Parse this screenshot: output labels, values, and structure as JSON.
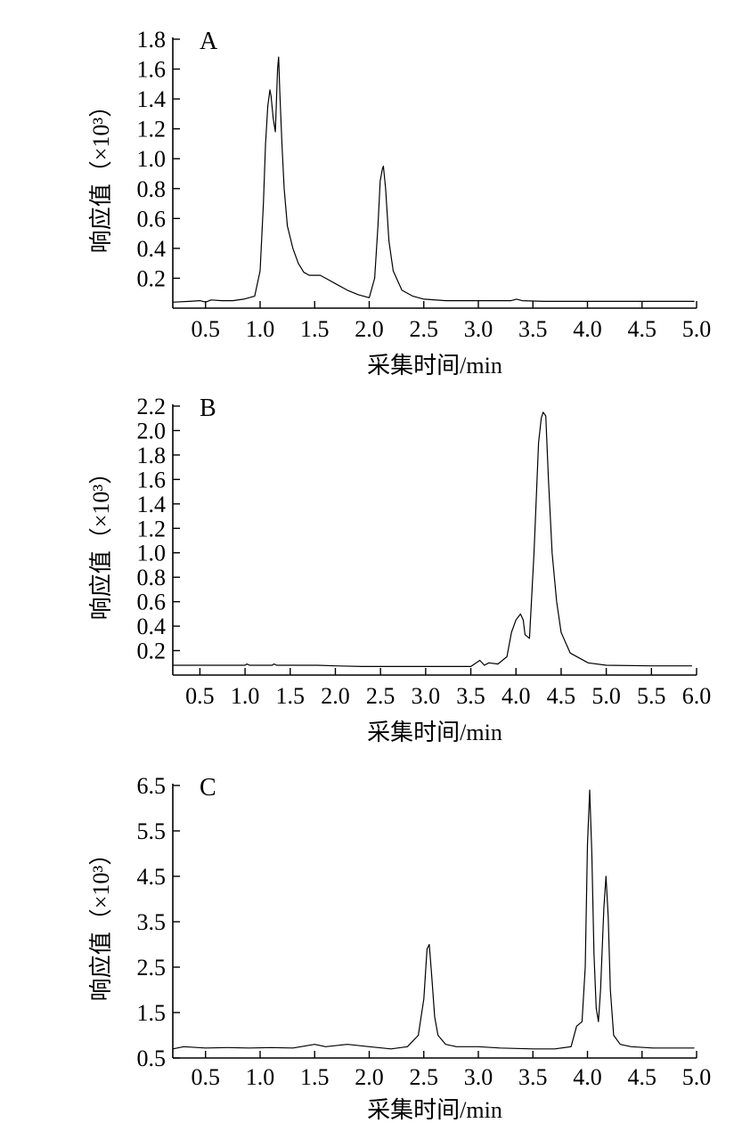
{
  "chart_data": [
    {
      "type": "line",
      "panel_label": "A",
      "xlabel": "采集时间/min",
      "ylabel": "响应值（×10³）",
      "xlim": [
        0.2,
        5.0
      ],
      "ylim": [
        0.0,
        1.8
      ],
      "x_ticks": [
        "0.5",
        "1.0",
        "1.5",
        "2.0",
        "2.5",
        "3.0",
        "3.5",
        "4.0",
        "4.5",
        "5.0"
      ],
      "y_ticks": [
        "0.2",
        "0.4",
        "0.6",
        "0.8",
        "1.0",
        "1.2",
        "1.4",
        "1.6",
        "1.8"
      ],
      "grid": false,
      "series": [
        {
          "x": [
            0.2,
            0.35,
            0.45,
            0.5,
            0.55,
            0.65,
            0.75,
            0.85,
            0.95,
            1.0,
            1.03,
            1.05,
            1.07,
            1.09,
            1.1,
            1.12,
            1.14,
            1.16,
            1.17,
            1.18,
            1.2,
            1.22,
            1.25,
            1.3,
            1.35,
            1.4,
            1.45,
            1.5,
            1.55,
            1.6,
            1.7,
            1.8,
            1.9,
            2.0,
            2.05,
            2.08,
            2.1,
            2.12,
            2.13,
            2.15,
            2.18,
            2.22,
            2.3,
            2.4,
            2.5,
            2.7,
            3.0,
            3.2,
            3.3,
            3.35,
            3.4,
            3.6,
            4.0,
            4.5,
            4.98
          ],
          "y": [
            0.04,
            0.045,
            0.05,
            0.04,
            0.055,
            0.05,
            0.05,
            0.06,
            0.08,
            0.25,
            0.7,
            1.1,
            1.35,
            1.46,
            1.42,
            1.27,
            1.18,
            1.6,
            1.68,
            1.45,
            1.1,
            0.8,
            0.55,
            0.4,
            0.3,
            0.24,
            0.22,
            0.22,
            0.22,
            0.2,
            0.16,
            0.12,
            0.09,
            0.07,
            0.2,
            0.55,
            0.85,
            0.93,
            0.95,
            0.8,
            0.45,
            0.25,
            0.12,
            0.08,
            0.06,
            0.05,
            0.05,
            0.05,
            0.05,
            0.06,
            0.05,
            0.045,
            0.045,
            0.045,
            0.045
          ]
        }
      ]
    },
    {
      "type": "line",
      "panel_label": "B",
      "xlabel": "采集时间/min",
      "ylabel": "响应值（×10³）",
      "xlim": [
        0.2,
        6.0
      ],
      "ylim": [
        0.0,
        2.2
      ],
      "x_ticks": [
        "0.5",
        "1.0",
        "1.5",
        "2.0",
        "2.5",
        "3.0",
        "3.5",
        "4.0",
        "4.5",
        "5.0",
        "5.5",
        "6.0"
      ],
      "y_ticks": [
        "0.2",
        "0.4",
        "0.6",
        "0.8",
        "1.0",
        "1.2",
        "1.4",
        "1.6",
        "1.8",
        "2.0",
        "2.2"
      ],
      "grid": false,
      "series": [
        {
          "x": [
            0.2,
            0.5,
            1.0,
            1.02,
            1.05,
            1.3,
            1.32,
            1.35,
            1.8,
            2.0,
            2.3,
            2.5,
            2.7,
            3.0,
            3.3,
            3.5,
            3.6,
            3.65,
            3.7,
            3.8,
            3.9,
            3.95,
            4.0,
            4.05,
            4.08,
            4.1,
            4.15,
            4.2,
            4.25,
            4.28,
            4.3,
            4.33,
            4.36,
            4.4,
            4.45,
            4.5,
            4.6,
            4.8,
            5.0,
            5.5,
            5.95
          ],
          "y": [
            0.08,
            0.08,
            0.08,
            0.09,
            0.08,
            0.08,
            0.09,
            0.08,
            0.08,
            0.075,
            0.07,
            0.07,
            0.07,
            0.07,
            0.07,
            0.07,
            0.12,
            0.08,
            0.1,
            0.09,
            0.15,
            0.35,
            0.45,
            0.5,
            0.45,
            0.33,
            0.3,
            1.0,
            1.9,
            2.1,
            2.15,
            2.12,
            1.6,
            1.0,
            0.6,
            0.35,
            0.18,
            0.1,
            0.08,
            0.075,
            0.075
          ]
        }
      ]
    },
    {
      "type": "line",
      "panel_label": "C",
      "xlabel": "采集时间/min",
      "ylabel": "响应值（×10³）",
      "xlim": [
        0.2,
        5.0
      ],
      "ylim": [
        0.5,
        6.5
      ],
      "x_ticks": [
        "0.5",
        "1.0",
        "1.5",
        "2.0",
        "2.5",
        "3.0",
        "3.5",
        "4.0",
        "4.5",
        "5.0"
      ],
      "y_ticks": [
        "0.5",
        "1.5",
        "2.5",
        "3.5",
        "4.5",
        "5.5",
        "6.5"
      ],
      "grid": false,
      "series": [
        {
          "x": [
            0.2,
            0.3,
            0.5,
            0.7,
            0.9,
            1.1,
            1.3,
            1.5,
            1.6,
            1.8,
            2.0,
            2.2,
            2.35,
            2.45,
            2.5,
            2.53,
            2.55,
            2.57,
            2.6,
            2.63,
            2.7,
            2.8,
            3.0,
            3.2,
            3.5,
            3.7,
            3.85,
            3.9,
            3.95,
            3.98,
            4.0,
            4.02,
            4.04,
            4.06,
            4.08,
            4.1,
            4.12,
            4.15,
            4.17,
            4.19,
            4.21,
            4.24,
            4.3,
            4.4,
            4.6,
            4.98
          ],
          "y": [
            0.7,
            0.75,
            0.72,
            0.73,
            0.72,
            0.73,
            0.72,
            0.8,
            0.75,
            0.8,
            0.75,
            0.7,
            0.75,
            1.0,
            1.8,
            2.9,
            3.0,
            2.4,
            1.4,
            1.0,
            0.8,
            0.75,
            0.75,
            0.72,
            0.7,
            0.7,
            0.75,
            1.2,
            1.3,
            2.5,
            5.2,
            6.4,
            5.0,
            2.8,
            1.6,
            1.3,
            2.0,
            3.8,
            4.5,
            3.6,
            2.0,
            1.0,
            0.8,
            0.75,
            0.72,
            0.72
          ]
        }
      ]
    }
  ]
}
